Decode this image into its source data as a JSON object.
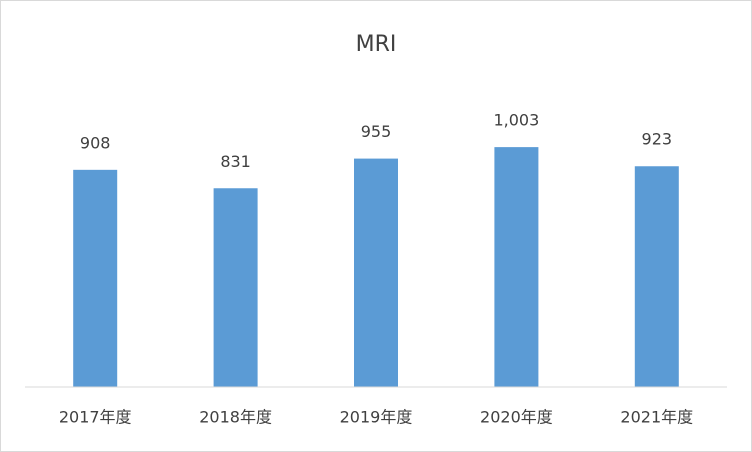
{
  "chart_data": {
    "type": "bar",
    "title": "MRI",
    "categories": [
      "2017年度",
      "2018年度",
      "2019年度",
      "2020年度",
      "2021年度"
    ],
    "values": [
      908,
      831,
      955,
      1003,
      923
    ],
    "value_labels": [
      "908",
      "831",
      "955",
      "1,003",
      "923"
    ],
    "color": "#5b9bd5",
    "ylim": [
      0,
      1200
    ]
  }
}
